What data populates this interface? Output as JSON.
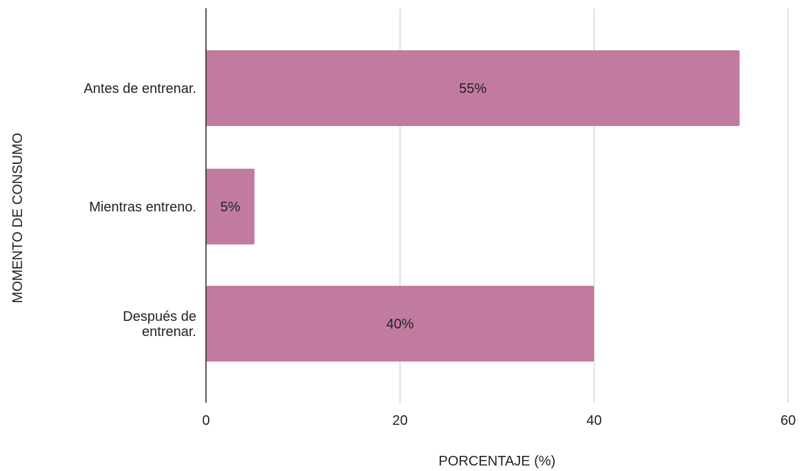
{
  "chart_data": {
    "type": "bar",
    "orientation": "horizontal",
    "categories": [
      "Antes de entrenar.",
      "Mientras entreno.",
      "Después de entrenar."
    ],
    "category_lines": [
      [
        "Antes de entrenar."
      ],
      [
        "Mientras entreno."
      ],
      [
        "Después de",
        "entrenar."
      ]
    ],
    "values": [
      55,
      5,
      40
    ],
    "data_labels": [
      "55%",
      "5%",
      "40%"
    ],
    "xlabel": "PORCENTAJE (%)",
    "ylabel": "MOMENTO DE CONSUMO",
    "xlim": [
      0,
      60
    ],
    "xticks": [
      0,
      20,
      40,
      60
    ],
    "xtick_labels": [
      "0",
      "20",
      "40",
      "60"
    ],
    "grid": true,
    "bar_color": "#c27ba0",
    "axis_color": "#222222",
    "grid_color": "#cccccc"
  }
}
